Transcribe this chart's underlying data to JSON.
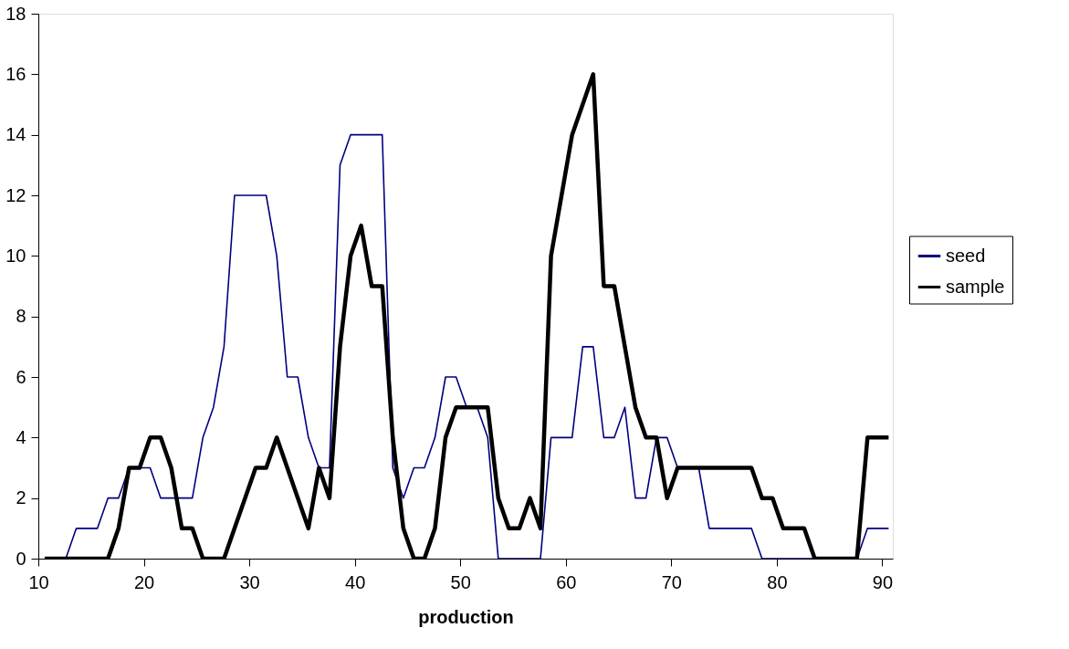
{
  "chart_data": {
    "type": "line",
    "xlabel": "production",
    "x": [
      10.6,
      11.6,
      12.6,
      13.6,
      14.6,
      15.6,
      16.6,
      17.6,
      18.6,
      19.6,
      20.6,
      21.6,
      22.6,
      23.6,
      24.6,
      25.6,
      26.6,
      27.6,
      28.6,
      29.6,
      30.6,
      31.6,
      32.6,
      33.6,
      34.6,
      35.6,
      36.6,
      37.6,
      38.6,
      39.6,
      40.6,
      41.6,
      42.6,
      43.6,
      44.6,
      45.6,
      46.6,
      47.6,
      48.6,
      49.6,
      50.6,
      51.6,
      52.6,
      53.6,
      54.6,
      55.6,
      56.6,
      57.6,
      58.6,
      59.6,
      60.6,
      61.6,
      62.6,
      63.6,
      64.6,
      65.6,
      66.6,
      67.6,
      68.6,
      69.6,
      70.6,
      71.6,
      72.6,
      73.6,
      74.6,
      75.6,
      76.6,
      77.6,
      78.6,
      79.6,
      80.6,
      81.6,
      82.6,
      83.6,
      84.6,
      85.6,
      86.6,
      87.6,
      88.6,
      89.6,
      90.6
    ],
    "series": [
      {
        "name": "seed",
        "color": "#000080",
        "values": [
          0,
          0,
          0,
          1,
          1,
          1,
          2,
          2,
          3,
          3,
          3,
          2,
          2,
          2,
          2,
          4,
          5,
          7,
          12,
          12,
          12,
          12,
          10,
          6,
          6,
          4,
          3,
          3,
          13,
          14,
          14,
          14,
          14,
          3,
          2,
          3,
          3,
          4,
          6,
          6,
          5,
          5,
          4,
          0,
          0,
          0,
          0,
          0,
          4,
          4,
          4,
          7,
          7,
          4,
          4,
          5,
          2,
          2,
          4,
          4,
          3,
          3,
          3,
          1,
          1,
          1,
          1,
          1,
          0,
          0,
          0,
          0,
          0,
          0,
          0,
          0,
          0,
          0,
          1,
          1,
          1
        ]
      },
      {
        "name": "sample",
        "color": "#000000",
        "values": [
          0,
          0,
          0,
          0,
          0,
          0,
          0,
          1,
          3,
          3,
          4,
          4,
          3,
          1,
          1,
          0,
          0,
          0,
          1,
          2,
          3,
          3,
          4,
          3,
          2,
          1,
          3,
          2,
          7,
          10,
          11,
          9,
          9,
          4,
          1,
          0,
          0,
          1,
          4,
          5,
          5,
          5,
          5,
          2,
          1,
          1,
          2,
          1,
          10,
          12,
          14,
          15,
          16,
          9,
          9,
          7,
          5,
          4,
          4,
          2,
          3,
          3,
          3,
          3,
          3,
          3,
          3,
          3,
          2,
          2,
          1,
          1,
          1,
          0,
          0,
          0,
          0,
          0,
          4,
          4,
          4
        ]
      }
    ],
    "xlim": [
      10,
      91
    ],
    "xticks": [
      10,
      20,
      30,
      40,
      50,
      60,
      70,
      80,
      90
    ],
    "ylim": [
      0,
      18
    ],
    "yticks": [
      0,
      2,
      4,
      6,
      8,
      10,
      12,
      14,
      16,
      18
    ],
    "grid": false,
    "legend": "right",
    "line_style": "solid"
  }
}
